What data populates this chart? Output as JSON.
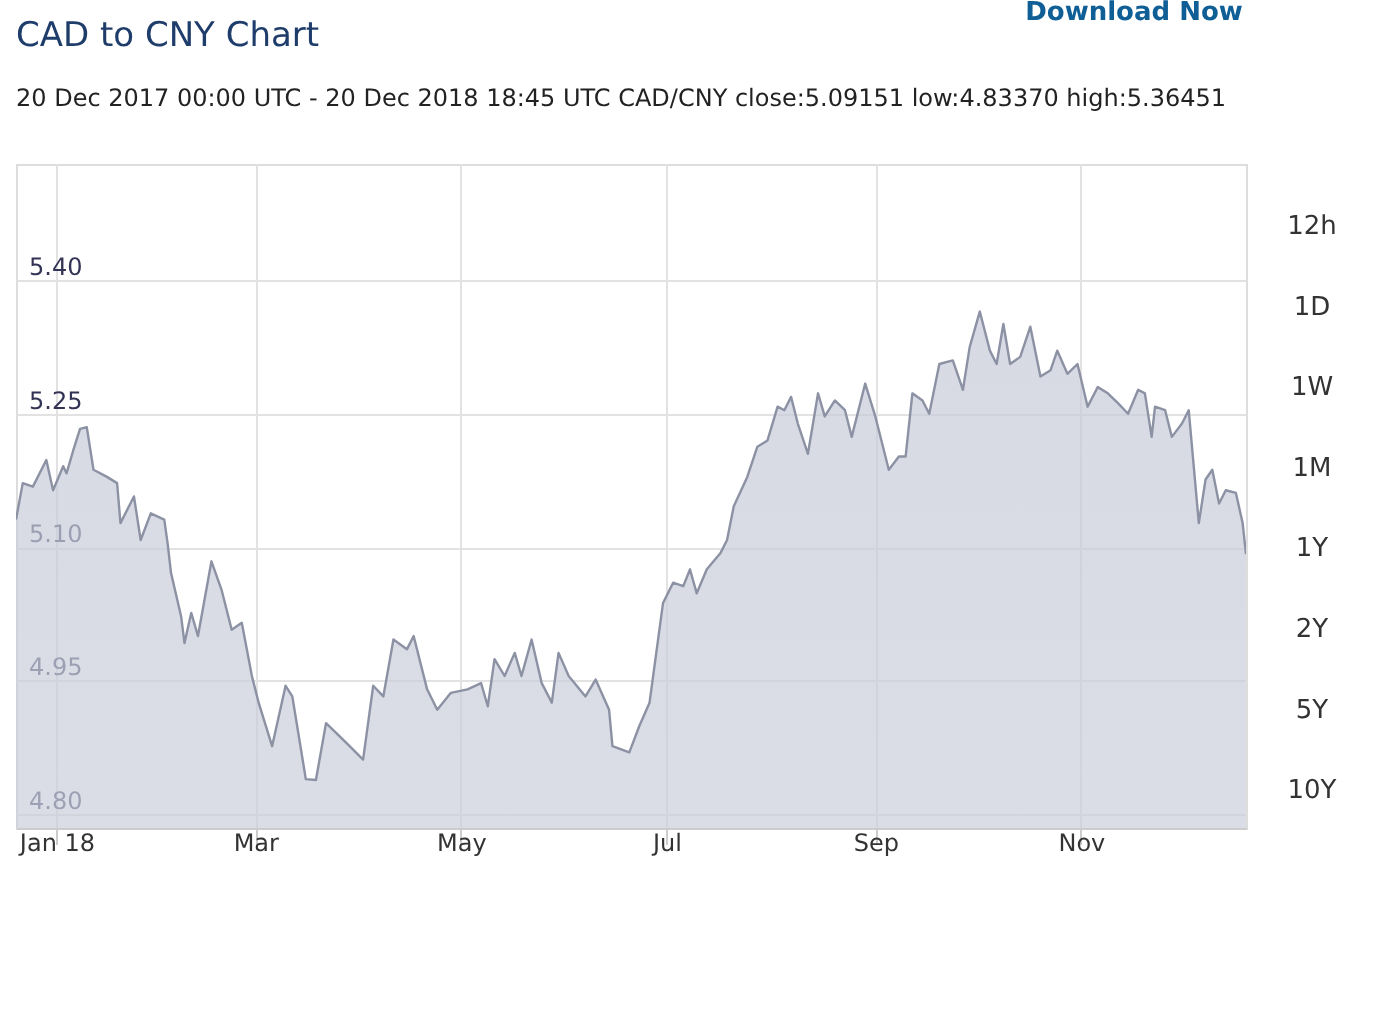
{
  "chart_data": {
    "type": "area",
    "title": "CAD to CNY Chart",
    "subtitle": "20 Dec 2017 00:00 UTC - 20 Dec 2018 18:45 UTC   CAD/CNY close:5.09151 low:4.83370 high:5.36451",
    "annotations": [
      "Download Now",
      "12h",
      "1D",
      "1W",
      "1M",
      "1Y",
      "2Y",
      "5Y",
      "10Y"
    ],
    "x": [
      "2017-12-20",
      "2017-12-22",
      "2017-12-25",
      "2017-12-29",
      "2017-12-31",
      "2018-01-03",
      "2018-01-04",
      "2018-01-06",
      "2018-01-08",
      "2018-01-10",
      "2018-01-12",
      "2018-01-16",
      "2018-01-19",
      "2018-01-20",
      "2018-01-24",
      "2018-01-26",
      "2018-01-29",
      "2018-02-02",
      "2018-02-03",
      "2018-02-04",
      "2018-02-07",
      "2018-02-08",
      "2018-02-10",
      "2018-02-12",
      "2018-02-16",
      "2018-02-19",
      "2018-02-22",
      "2018-02-25",
      "2018-02-28",
      "2018-03-02",
      "2018-03-06",
      "2018-03-10",
      "2018-03-12",
      "2018-03-16",
      "2018-03-19",
      "2018-03-22",
      "2018-03-25",
      "2018-03-29",
      "2018-04-02",
      "2018-04-05",
      "2018-04-08",
      "2018-04-11",
      "2018-04-15",
      "2018-04-17",
      "2018-04-21",
      "2018-04-24",
      "2018-04-28",
      "2018-05-03",
      "2018-05-07",
      "2018-05-09",
      "2018-05-11",
      "2018-05-14",
      "2018-05-17",
      "2018-05-19",
      "2018-05-22",
      "2018-05-25",
      "2018-05-28",
      "2018-05-30",
      "2018-06-02",
      "2018-06-07",
      "2018-06-10",
      "2018-06-14",
      "2018-06-15",
      "2018-06-20",
      "2018-06-23",
      "2018-06-26",
      "2018-06-30",
      "2018-07-03",
      "2018-07-06",
      "2018-07-08",
      "2018-07-10",
      "2018-07-13",
      "2018-07-17",
      "2018-07-19",
      "2018-07-21",
      "2018-07-25",
      "2018-07-28",
      "2018-07-31",
      "2018-08-03",
      "2018-08-05",
      "2018-08-07",
      "2018-08-09",
      "2018-08-12",
      "2018-08-15",
      "2018-08-17",
      "2018-08-20",
      "2018-08-23",
      "2018-08-25",
      "2018-08-29",
      "2018-09-01",
      "2018-09-05",
      "2018-09-08",
      "2018-09-10",
      "2018-09-12",
      "2018-09-15",
      "2018-09-17",
      "2018-09-20",
      "2018-09-24",
      "2018-09-27",
      "2018-09-29",
      "2018-10-02",
      "2018-10-05",
      "2018-10-07",
      "2018-10-09",
      "2018-10-11",
      "2018-10-14",
      "2018-10-17",
      "2018-10-20",
      "2018-10-23",
      "2018-10-25",
      "2018-10-28",
      "2018-10-31",
      "2018-11-03",
      "2018-11-06",
      "2018-11-09",
      "2018-11-12",
      "2018-11-15",
      "2018-11-18",
      "2018-11-20",
      "2018-11-22",
      "2018-11-23",
      "2018-11-26",
      "2018-11-28",
      "2018-12-01",
      "2018-12-03",
      "2018-12-06",
      "2018-12-08",
      "2018-12-10",
      "2018-12-12",
      "2018-12-14",
      "2018-12-17",
      "2018-12-19",
      "2018-12-20"
    ],
    "series": [
      {
        "color": "#8c92a4",
        "values": [
          5.131,
          5.172,
          5.168,
          5.198,
          5.164,
          5.191,
          5.183,
          5.209,
          5.233,
          5.235,
          5.187,
          5.179,
          5.172,
          5.127,
          5.157,
          5.108,
          5.138,
          5.131,
          5.104,
          5.071,
          5.022,
          4.992,
          5.026,
          5.0,
          5.084,
          5.052,
          5.007,
          5.015,
          4.955,
          4.925,
          4.876,
          4.944,
          4.932,
          4.839,
          4.838,
          4.902,
          4.891,
          4.876,
          4.861,
          4.944,
          4.932,
          4.996,
          4.985,
          5.0,
          4.94,
          4.917,
          4.936,
          4.94,
          4.947,
          4.921,
          4.974,
          4.955,
          4.981,
          4.955,
          4.996,
          4.947,
          4.925,
          4.981,
          4.955,
          4.932,
          4.951,
          4.917,
          4.876,
          4.869,
          4.899,
          4.925,
          5.037,
          5.06,
          5.056,
          5.075,
          5.048,
          5.075,
          5.093,
          5.108,
          5.146,
          5.179,
          5.213,
          5.22,
          5.258,
          5.254,
          5.269,
          5.239,
          5.205,
          5.273,
          5.247,
          5.265,
          5.254,
          5.224,
          5.284,
          5.247,
          5.187,
          5.202,
          5.202,
          5.273,
          5.265,
          5.25,
          5.306,
          5.31,
          5.277,
          5.325,
          5.365,
          5.321,
          5.306,
          5.351,
          5.306,
          5.314,
          5.348,
          5.292,
          5.299,
          5.321,
          5.295,
          5.306,
          5.258,
          5.28,
          5.273,
          5.262,
          5.25,
          5.277,
          5.273,
          5.224,
          5.258,
          5.254,
          5.224,
          5.239,
          5.254,
          5.127,
          5.176,
          5.187,
          5.149,
          5.164,
          5.161,
          5.127,
          5.092
        ]
      }
    ],
    "xlim": [
      "2017-12-20",
      "2018-12-20"
    ],
    "xticks": [
      {
        "value": "2018-01-01",
        "label": "Jan 18"
      },
      {
        "value": "2018-03-01",
        "label": "Mar"
      },
      {
        "value": "2018-05-01",
        "label": "May"
      },
      {
        "value": "2018-07-01",
        "label": "Jul"
      },
      {
        "value": "2018-09-01",
        "label": "Sep"
      },
      {
        "value": "2018-11-01",
        "label": "Nov"
      }
    ],
    "ylim": [
      4.784,
      5.531
    ],
    "yticks": [
      {
        "value": 4.8,
        "label": "4.80"
      },
      {
        "value": 4.95,
        "label": "4.95"
      },
      {
        "value": 5.1,
        "label": "5.10"
      },
      {
        "value": 5.25,
        "label": "5.25"
      },
      {
        "value": 5.4,
        "label": "5.40"
      }
    ],
    "grid": true,
    "marker": "none",
    "line_style": "solid"
  }
}
